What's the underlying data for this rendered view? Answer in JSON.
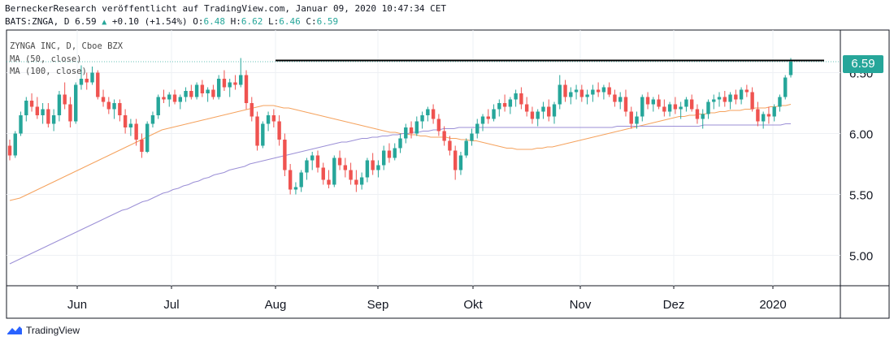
{
  "header": {
    "line1": "BerneckerResearch veröffentlicht auf TradingView.com, Januar 09, 2020 10:47:34 CET",
    "symbol": "BATS:ZNGA, D",
    "last": "6.59",
    "change": "+0.10 (+1.54%)",
    "o_label": "O:",
    "o_value": "6.48",
    "h_label": "H:",
    "h_value": "6.62",
    "l_label": "L:",
    "l_value": "6.46",
    "c_label": "C:",
    "c_value": "6.59"
  },
  "legend": {
    "title": "ZYNGA INC, D, Cboe BZX",
    "ma50": "MA (50, close)",
    "ma100": "MA (100, close)"
  },
  "price_tag": "6.59",
  "brand": "TradingView",
  "colors": {
    "up": "#26a69a",
    "down": "#ef5350",
    "ma50": "#f5a25d",
    "ma100": "#9b8fd6",
    "hline": "#000000"
  },
  "chart_data": {
    "type": "candlestick",
    "title": "ZYNGA INC, D, Cboe BZX",
    "x_ticks": [
      "Jun",
      "Jul",
      "Aug",
      "Sep",
      "Okt",
      "Nov",
      "Dez",
      "2020"
    ],
    "y_ticks": [
      "5.00",
      "5.50",
      "6.00",
      "6.50"
    ],
    "ylim": [
      4.75,
      6.85
    ],
    "horizontal_line": 6.6,
    "last_price": 6.59,
    "series": [
      {
        "name": "MA (50, close)",
        "values": [
          5.45,
          5.46,
          5.47,
          5.49,
          5.51,
          5.53,
          5.55,
          5.57,
          5.59,
          5.61,
          5.63,
          5.65,
          5.67,
          5.69,
          5.71,
          5.73,
          5.75,
          5.77,
          5.79,
          5.81,
          5.83,
          5.85,
          5.87,
          5.89,
          5.91,
          5.93,
          5.95,
          5.97,
          5.99,
          6.01,
          6.03,
          6.04,
          6.05,
          6.06,
          6.07,
          6.08,
          6.09,
          6.1,
          6.11,
          6.12,
          6.13,
          6.14,
          6.15,
          6.16,
          6.17,
          6.18,
          6.19,
          6.2,
          6.21,
          6.22,
          6.23,
          6.23,
          6.23,
          6.22,
          6.21,
          6.21,
          6.2,
          6.19,
          6.18,
          6.17,
          6.16,
          6.15,
          6.14,
          6.13,
          6.12,
          6.11,
          6.1,
          6.09,
          6.08,
          6.07,
          6.06,
          6.05,
          6.04,
          6.03,
          6.02,
          6.01,
          6.01,
          6.0,
          6.0,
          5.99,
          5.99,
          5.98,
          5.98,
          5.97,
          5.97,
          5.97,
          5.97,
          5.96,
          5.96,
          5.95,
          5.95,
          5.94,
          5.94,
          5.93,
          5.92,
          5.91,
          5.9,
          5.89,
          5.88,
          5.88,
          5.87,
          5.87,
          5.87,
          5.87,
          5.88,
          5.88,
          5.89,
          5.89,
          5.9,
          5.91,
          5.92,
          5.93,
          5.94,
          5.95,
          5.96,
          5.97,
          5.98,
          5.99,
          6.0,
          6.01,
          6.02,
          6.03,
          6.04,
          6.05,
          6.06,
          6.07,
          6.08,
          6.09,
          6.1,
          6.11,
          6.12,
          6.13,
          6.14,
          6.14,
          6.15,
          6.15,
          6.16,
          6.16,
          6.17,
          6.17,
          6.18,
          6.18,
          6.19,
          6.19,
          6.19,
          6.2,
          6.2,
          6.21,
          6.21,
          6.21,
          6.22,
          6.22,
          6.23,
          6.23,
          6.24
        ]
      },
      {
        "name": "MA (100, close)",
        "values": [
          4.93,
          4.95,
          4.97,
          4.99,
          5.01,
          5.03,
          5.05,
          5.07,
          5.09,
          5.11,
          5.13,
          5.15,
          5.17,
          5.19,
          5.21,
          5.23,
          5.25,
          5.27,
          5.29,
          5.31,
          5.33,
          5.35,
          5.37,
          5.38,
          5.4,
          5.42,
          5.44,
          5.45,
          5.47,
          5.49,
          5.51,
          5.52,
          5.54,
          5.55,
          5.57,
          5.58,
          5.6,
          5.61,
          5.63,
          5.64,
          5.66,
          5.67,
          5.68,
          5.7,
          5.71,
          5.72,
          5.73,
          5.75,
          5.76,
          5.77,
          5.78,
          5.79,
          5.8,
          5.81,
          5.82,
          5.83,
          5.84,
          5.85,
          5.86,
          5.87,
          5.88,
          5.89,
          5.9,
          5.91,
          5.92,
          5.93,
          5.93,
          5.94,
          5.95,
          5.96,
          5.96,
          5.97,
          5.97,
          5.98,
          5.98,
          5.99,
          5.99,
          6.0,
          6.0,
          6.01,
          6.01,
          6.02,
          6.02,
          6.03,
          6.03,
          6.04,
          6.04,
          6.04,
          6.05,
          6.05,
          6.05,
          6.05,
          6.05,
          6.05,
          6.05,
          6.05,
          6.05,
          6.05,
          6.05,
          6.05,
          6.05,
          6.05,
          6.05,
          6.05,
          6.05,
          6.05,
          6.05,
          6.05,
          6.05,
          6.05,
          6.05,
          6.05,
          6.05,
          6.05,
          6.05,
          6.05,
          6.05,
          6.05,
          6.05,
          6.06,
          6.06,
          6.06,
          6.06,
          6.06,
          6.06,
          6.06,
          6.06,
          6.06,
          6.06,
          6.06,
          6.06,
          6.06,
          6.06,
          6.06,
          6.06,
          6.06,
          6.07,
          6.07,
          6.07,
          6.07,
          6.07,
          6.07,
          6.07,
          6.07,
          6.07,
          6.07,
          6.07,
          6.07,
          6.07,
          6.07,
          6.07,
          6.07,
          6.08,
          6.08
        ]
      }
    ],
    "candles_ohlc": [
      [
        5.9,
        5.95,
        5.78,
        5.82
      ],
      [
        5.82,
        6.02,
        5.8,
        6.0
      ],
      [
        6.0,
        6.18,
        5.98,
        6.15
      ],
      [
        6.15,
        6.3,
        6.1,
        6.27
      ],
      [
        6.27,
        6.33,
        6.18,
        6.22
      ],
      [
        6.22,
        6.3,
        6.12,
        6.15
      ],
      [
        6.15,
        6.25,
        6.08,
        6.2
      ],
      [
        6.2,
        6.25,
        6.05,
        6.08
      ],
      [
        6.08,
        6.2,
        6.02,
        6.15
      ],
      [
        6.15,
        6.35,
        6.1,
        6.32
      ],
      [
        6.32,
        6.42,
        6.2,
        6.24
      ],
      [
        6.24,
        6.3,
        6.05,
        6.1
      ],
      [
        6.1,
        6.42,
        6.08,
        6.4
      ],
      [
        6.4,
        6.56,
        6.36,
        6.45
      ],
      [
        6.45,
        6.5,
        6.36,
        6.42
      ],
      [
        6.42,
        6.55,
        6.4,
        6.5
      ],
      [
        6.5,
        6.52,
        6.28,
        6.3
      ],
      [
        6.3,
        6.36,
        6.22,
        6.26
      ],
      [
        6.26,
        6.3,
        6.16,
        6.2
      ],
      [
        6.2,
        6.28,
        6.12,
        6.25
      ],
      [
        6.25,
        6.28,
        6.1,
        6.15
      ],
      [
        6.15,
        6.2,
        6.0,
        6.05
      ],
      [
        6.05,
        6.12,
        5.98,
        6.08
      ],
      [
        6.08,
        6.12,
        5.9,
        5.95
      ],
      [
        5.95,
        6.0,
        5.8,
        5.85
      ],
      [
        5.85,
        6.1,
        5.84,
        6.08
      ],
      [
        6.08,
        6.18,
        6.05,
        6.15
      ],
      [
        6.15,
        6.32,
        6.12,
        6.3
      ],
      [
        6.3,
        6.36,
        6.25,
        6.28
      ],
      [
        6.28,
        6.34,
        6.22,
        6.32
      ],
      [
        6.32,
        6.36,
        6.24,
        6.26
      ],
      [
        6.26,
        6.32,
        6.2,
        6.3
      ],
      [
        6.3,
        6.38,
        6.26,
        6.35
      ],
      [
        6.35,
        6.4,
        6.28,
        6.3
      ],
      [
        6.3,
        6.42,
        6.28,
        6.4
      ],
      [
        6.4,
        6.44,
        6.3,
        6.33
      ],
      [
        6.33,
        6.38,
        6.26,
        6.36
      ],
      [
        6.36,
        6.4,
        6.28,
        6.3
      ],
      [
        6.3,
        6.48,
        6.28,
        6.45
      ],
      [
        6.45,
        6.52,
        6.35,
        6.38
      ],
      [
        6.38,
        6.45,
        6.3,
        6.42
      ],
      [
        6.42,
        6.48,
        6.36,
        6.4
      ],
      [
        6.4,
        6.62,
        6.38,
        6.48
      ],
      [
        6.48,
        6.52,
        6.2,
        6.25
      ],
      [
        6.25,
        6.3,
        6.1,
        6.14
      ],
      [
        6.14,
        6.18,
        5.86,
        5.9
      ],
      [
        5.9,
        6.1,
        5.88,
        6.08
      ],
      [
        6.08,
        6.18,
        6.02,
        6.15
      ],
      [
        6.15,
        6.2,
        6.05,
        6.1
      ],
      [
        6.1,
        6.15,
        5.9,
        5.95
      ],
      [
        5.95,
        6.0,
        5.65,
        5.7
      ],
      [
        5.7,
        5.75,
        5.5,
        5.54
      ],
      [
        5.54,
        5.6,
        5.5,
        5.56
      ],
      [
        5.56,
        5.7,
        5.52,
        5.68
      ],
      [
        5.68,
        5.8,
        5.62,
        5.78
      ],
      [
        5.78,
        5.85,
        5.7,
        5.82
      ],
      [
        5.82,
        5.86,
        5.68,
        5.72
      ],
      [
        5.72,
        5.76,
        5.58,
        5.62
      ],
      [
        5.62,
        5.7,
        5.55,
        5.58
      ],
      [
        5.58,
        5.82,
        5.56,
        5.8
      ],
      [
        5.8,
        5.86,
        5.7,
        5.74
      ],
      [
        5.74,
        5.8,
        5.64,
        5.7
      ],
      [
        5.7,
        5.76,
        5.58,
        5.62
      ],
      [
        5.62,
        5.7,
        5.52,
        5.58
      ],
      [
        5.58,
        5.68,
        5.54,
        5.64
      ],
      [
        5.64,
        5.8,
        5.6,
        5.78
      ],
      [
        5.78,
        5.84,
        5.66,
        5.7
      ],
      [
        5.7,
        5.78,
        5.64,
        5.74
      ],
      [
        5.74,
        5.9,
        5.7,
        5.86
      ],
      [
        5.86,
        5.92,
        5.76,
        5.8
      ],
      [
        5.8,
        5.92,
        5.78,
        5.88
      ],
      [
        5.88,
        6.0,
        5.84,
        5.96
      ],
      [
        5.96,
        6.08,
        5.92,
        6.05
      ],
      [
        6.05,
        6.1,
        5.96,
        6.0
      ],
      [
        6.0,
        6.14,
        5.98,
        6.1
      ],
      [
        6.1,
        6.18,
        6.04,
        6.15
      ],
      [
        6.15,
        6.22,
        6.1,
        6.2
      ],
      [
        6.2,
        6.24,
        6.08,
        6.12
      ],
      [
        6.12,
        6.16,
        5.98,
        6.02
      ],
      [
        6.02,
        6.06,
        5.9,
        5.94
      ],
      [
        5.94,
        5.98,
        5.82,
        5.86
      ],
      [
        5.86,
        5.9,
        5.62,
        5.7
      ],
      [
        5.7,
        5.85,
        5.66,
        5.82
      ],
      [
        5.82,
        5.96,
        5.8,
        5.94
      ],
      [
        5.94,
        6.04,
        5.9,
        6.0
      ],
      [
        6.0,
        6.12,
        5.96,
        6.08
      ],
      [
        6.08,
        6.16,
        6.02,
        6.14
      ],
      [
        6.14,
        6.2,
        6.08,
        6.12
      ],
      [
        6.12,
        6.24,
        6.1,
        6.2
      ],
      [
        6.2,
        6.28,
        6.14,
        6.25
      ],
      [
        6.25,
        6.32,
        6.18,
        6.22
      ],
      [
        6.22,
        6.3,
        6.16,
        6.28
      ],
      [
        6.28,
        6.36,
        6.22,
        6.33
      ],
      [
        6.33,
        6.38,
        6.2,
        6.24
      ],
      [
        6.24,
        6.3,
        6.14,
        6.18
      ],
      [
        6.18,
        6.22,
        6.08,
        6.12
      ],
      [
        6.12,
        6.2,
        6.06,
        6.18
      ],
      [
        6.18,
        6.26,
        6.12,
        6.22
      ],
      [
        6.22,
        6.28,
        6.1,
        6.14
      ],
      [
        6.14,
        6.26,
        6.08,
        6.24
      ],
      [
        6.24,
        6.48,
        6.2,
        6.4
      ],
      [
        6.4,
        6.44,
        6.26,
        6.3
      ],
      [
        6.3,
        6.38,
        6.24,
        6.34
      ],
      [
        6.34,
        6.4,
        6.28,
        6.36
      ],
      [
        6.36,
        6.4,
        6.26,
        6.3
      ],
      [
        6.3,
        6.36,
        6.24,
        6.32
      ],
      [
        6.32,
        6.4,
        6.26,
        6.36
      ],
      [
        6.36,
        6.42,
        6.3,
        6.34
      ],
      [
        6.34,
        6.4,
        6.28,
        6.38
      ],
      [
        6.38,
        6.42,
        6.3,
        6.32
      ],
      [
        6.32,
        6.36,
        6.22,
        6.26
      ],
      [
        6.26,
        6.34,
        6.2,
        6.3
      ],
      [
        6.3,
        6.36,
        6.14,
        6.18
      ],
      [
        6.18,
        6.22,
        6.04,
        6.08
      ],
      [
        6.08,
        6.18,
        6.04,
        6.14
      ],
      [
        6.14,
        6.32,
        6.1,
        6.3
      ],
      [
        6.3,
        6.34,
        6.2,
        6.24
      ],
      [
        6.24,
        6.3,
        6.18,
        6.28
      ],
      [
        6.28,
        6.32,
        6.2,
        6.22
      ],
      [
        6.22,
        6.28,
        6.14,
        6.18
      ],
      [
        6.18,
        6.26,
        6.14,
        6.24
      ],
      [
        6.24,
        6.3,
        6.16,
        6.2
      ],
      [
        6.2,
        6.26,
        6.12,
        6.22
      ],
      [
        6.22,
        6.3,
        6.18,
        6.28
      ],
      [
        6.28,
        6.32,
        6.18,
        6.2
      ],
      [
        6.2,
        6.24,
        6.08,
        6.12
      ],
      [
        6.12,
        6.2,
        6.04,
        6.16
      ],
      [
        6.16,
        6.28,
        6.12,
        6.26
      ],
      [
        6.26,
        6.32,
        6.2,
        6.28
      ],
      [
        6.28,
        6.34,
        6.22,
        6.3
      ],
      [
        6.3,
        6.35,
        6.22,
        6.26
      ],
      [
        6.26,
        6.34,
        6.2,
        6.32
      ],
      [
        6.32,
        6.36,
        6.24,
        6.28
      ],
      [
        6.28,
        6.38,
        6.24,
        6.36
      ],
      [
        6.36,
        6.4,
        6.3,
        6.34
      ],
      [
        6.34,
        6.38,
        6.18,
        6.2
      ],
      [
        6.2,
        6.26,
        6.06,
        6.1
      ],
      [
        6.1,
        6.18,
        6.04,
        6.16
      ],
      [
        6.16,
        6.22,
        6.08,
        6.14
      ],
      [
        6.14,
        6.24,
        6.1,
        6.22
      ],
      [
        6.22,
        6.32,
        6.18,
        6.3
      ],
      [
        6.3,
        6.48,
        6.28,
        6.46
      ],
      [
        6.48,
        6.62,
        6.46,
        6.59
      ]
    ]
  }
}
